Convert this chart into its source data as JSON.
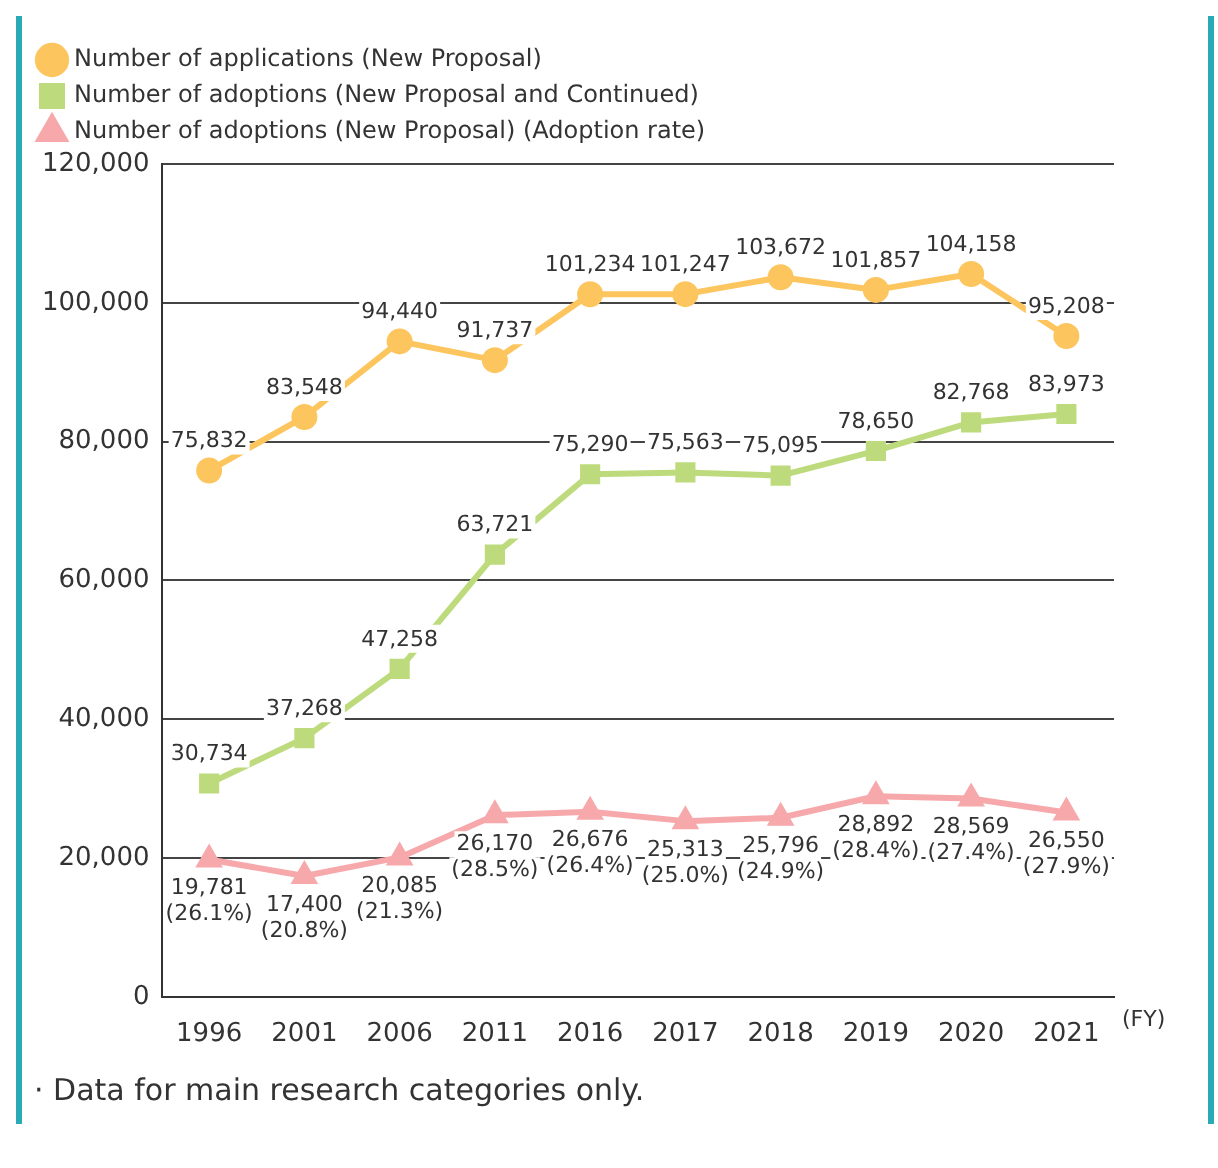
{
  "chart_data": {
    "type": "line",
    "categories": [
      "1996",
      "2001",
      "2006",
      "2011",
      "2016",
      "2017",
      "2018",
      "2019",
      "2020",
      "2021"
    ],
    "series": [
      {
        "name": "Number of applications (New Proposal)",
        "color": "#fdc55e",
        "marker": "circle",
        "values": [
          75832,
          83548,
          94440,
          91737,
          101234,
          101247,
          103672,
          101857,
          104158,
          95208
        ],
        "value_labels": [
          "75,832",
          "83,548",
          "94,440",
          "91,737",
          "101,234",
          "101,247",
          "103,672",
          "101,857",
          "104,158",
          "95,208"
        ]
      },
      {
        "name": "Number of adoptions (New Proposal and Continued)",
        "color": "#bddb7c",
        "marker": "square",
        "values": [
          30734,
          37268,
          47258,
          63721,
          75290,
          75563,
          75095,
          78650,
          82768,
          83973
        ],
        "value_labels": [
          "30,734",
          "37,268",
          "47,258",
          "63,721",
          "75,290",
          "75,563",
          "75,095",
          "78,650",
          "82,768",
          "83,973"
        ]
      },
      {
        "name": "Number of adoptions (New Proposal) (Adoption rate)",
        "color": "#f7a8aa",
        "marker": "triangle",
        "values": [
          19781,
          17400,
          20085,
          26170,
          26676,
          25313,
          25796,
          28892,
          28569,
          26550
        ],
        "value_labels": [
          "19,781 (26.1%)",
          "17,400 (20.8%)",
          "20,085 (21.3%)",
          "26,170 (28.5%)",
          "26,676 (26.4%)",
          "25,313 (25.0%)",
          "25,796 (24.9%)",
          "28,892 (28.4%)",
          "28,569 (27.4%)",
          "26,550 (27.9%)"
        ]
      }
    ],
    "xlabel": "(FY)",
    "ylim": [
      0,
      120000
    ],
    "yticks": [
      {
        "value": 0,
        "label": "0"
      },
      {
        "value": 20000,
        "label": "20,000"
      },
      {
        "value": 40000,
        "label": "40,000"
      },
      {
        "value": 60000,
        "label": "60,000"
      },
      {
        "value": 80000,
        "label": "80,000"
      },
      {
        "value": 100000,
        "label": "100,000"
      },
      {
        "value": 120000,
        "label": "120,000"
      }
    ],
    "grid": "y",
    "legend": "top left",
    "line_style": "solid",
    "annotations": [
      "· Data for main research categories only."
    ]
  }
}
